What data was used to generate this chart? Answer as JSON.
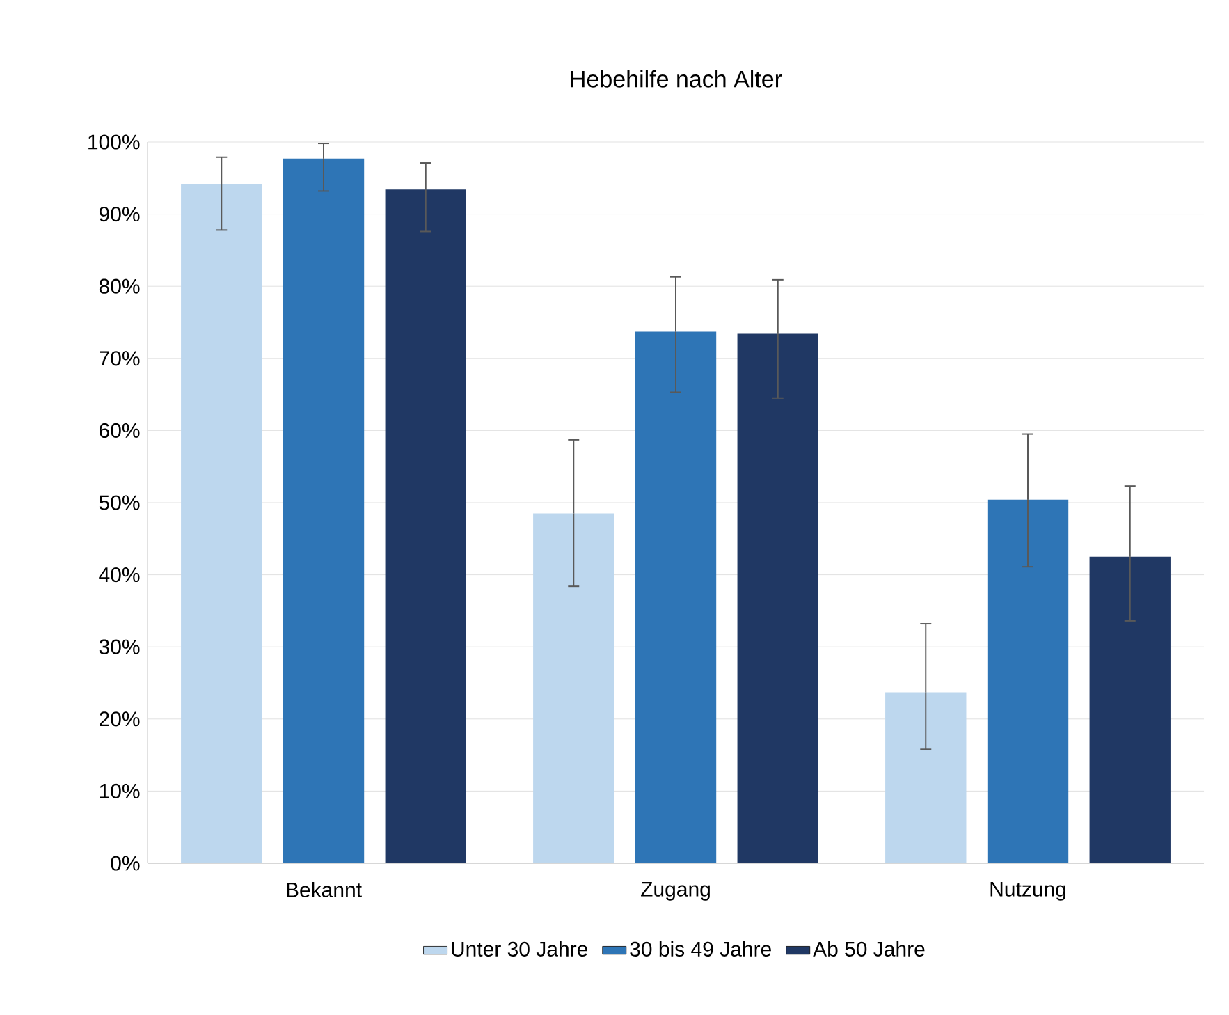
{
  "chart_data": {
    "type": "bar",
    "title": "Hebehilfe nach Alter",
    "categories": [
      "Bekannt",
      "Zugang",
      "Nutzung"
    ],
    "series": [
      {
        "name": "Unter 30 Jahre",
        "color": "#bdd7ee",
        "values": [
          94.2,
          48.5,
          23.7
        ],
        "errors": [
          [
            87.8,
            97.9
          ],
          [
            38.4,
            58.7
          ],
          [
            15.8,
            33.2
          ]
        ]
      },
      {
        "name": "30 bis 49 Jahre",
        "color": "#2e75b6",
        "values": [
          97.7,
          73.7,
          50.4
        ],
        "errors": [
          [
            93.2,
            99.8
          ],
          [
            65.3,
            81.3
          ],
          [
            41.1,
            59.5
          ]
        ]
      },
      {
        "name": "Ab 50 Jahre",
        "color": "#203864",
        "values": [
          93.4,
          73.4,
          42.5
        ],
        "errors": [
          [
            87.6,
            97.1
          ],
          [
            64.5,
            80.9
          ],
          [
            33.6,
            52.3
          ]
        ]
      }
    ],
    "ylim": [
      0,
      100
    ],
    "yticks": [
      {
        "value": 0,
        "label": "0%"
      },
      {
        "value": 10,
        "label": "10%"
      },
      {
        "value": 20,
        "label": "20%"
      },
      {
        "value": 30,
        "label": "30%"
      },
      {
        "value": 40,
        "label": "40%"
      },
      {
        "value": 50,
        "label": "50%"
      },
      {
        "value": 60,
        "label": "60%"
      },
      {
        "value": 70,
        "label": "70%"
      },
      {
        "value": 80,
        "label": "80%"
      },
      {
        "value": 90,
        "label": "90%"
      },
      {
        "value": 100,
        "label": "100%"
      }
    ],
    "grid": "y",
    "legend": "bottom"
  }
}
